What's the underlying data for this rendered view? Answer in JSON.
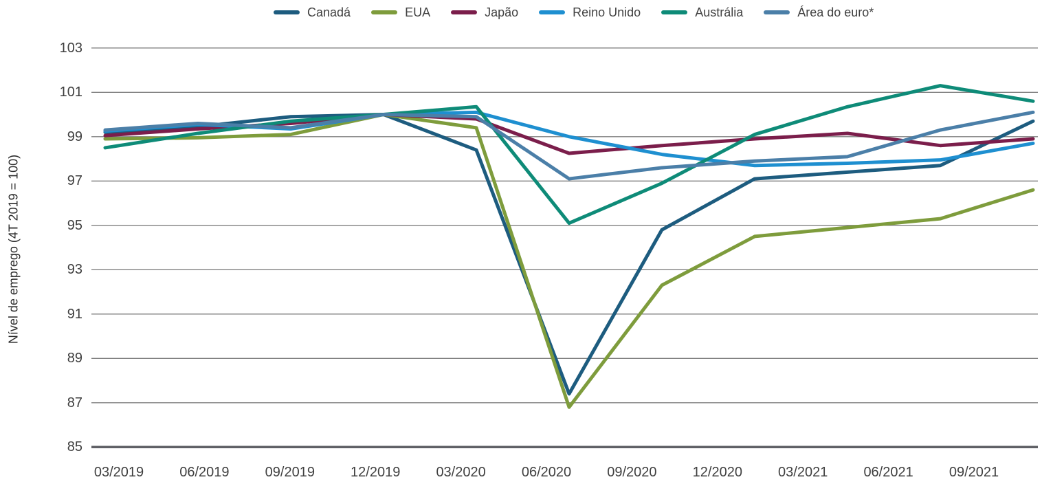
{
  "figure": {
    "background": "#ffffff",
    "text_color": "#3f3f3f",
    "grid_color": "#7f7f7f",
    "baseline_color": "#5f6066"
  },
  "chart_data": {
    "type": "line",
    "title": "",
    "xlabel": "",
    "ylabel": "Nível de emprego (4T 2019 = 100)",
    "ylim": [
      85,
      103
    ],
    "yticks": [
      103,
      101,
      99,
      97,
      95,
      93,
      91,
      89,
      87,
      85
    ],
    "grid": "horizontal",
    "legend_position": "top",
    "line_width": 5,
    "categories": [
      "03/2019",
      "06/2019",
      "09/2019",
      "12/2019",
      "03/2020",
      "06/2020",
      "09/2020",
      "12/2020",
      "03/2021",
      "06/2021",
      "09/2021"
    ],
    "series": [
      {
        "name": "Canadá",
        "color": "#1d5c7f",
        "values": [
          99.2,
          99.45,
          99.9,
          100,
          98.4,
          87.4,
          94.8,
          97.1,
          97.4,
          97.7,
          99.7
        ]
      },
      {
        "name": "EUA",
        "color": "#7e9c3c",
        "values": [
          98.9,
          98.95,
          99.1,
          100,
          99.4,
          86.8,
          92.3,
          94.5,
          94.9,
          95.3,
          96.6
        ]
      },
      {
        "name": "Japão",
        "color": "#7b1e4b",
        "values": [
          99.05,
          99.35,
          99.6,
          100,
          99.8,
          98.25,
          98.6,
          98.9,
          99.15,
          98.6,
          98.9
        ]
      },
      {
        "name": "Reino Unido",
        "color": "#1e8fd0",
        "values": [
          99.25,
          99.55,
          99.35,
          100,
          100.1,
          99.0,
          98.2,
          97.7,
          97.8,
          97.95,
          98.7
        ]
      },
      {
        "name": "Austrália",
        "color": "#0e8b78",
        "values": [
          98.5,
          99.15,
          99.7,
          100,
          100.35,
          95.1,
          96.9,
          99.1,
          100.35,
          101.3,
          100.6
        ]
      },
      {
        "name": "Área do euro*",
        "color": "#4b7fa8",
        "values": [
          99.3,
          99.6,
          99.4,
          100,
          99.9,
          97.1,
          97.6,
          97.9,
          98.1,
          99.3,
          100.1
        ]
      }
    ]
  }
}
